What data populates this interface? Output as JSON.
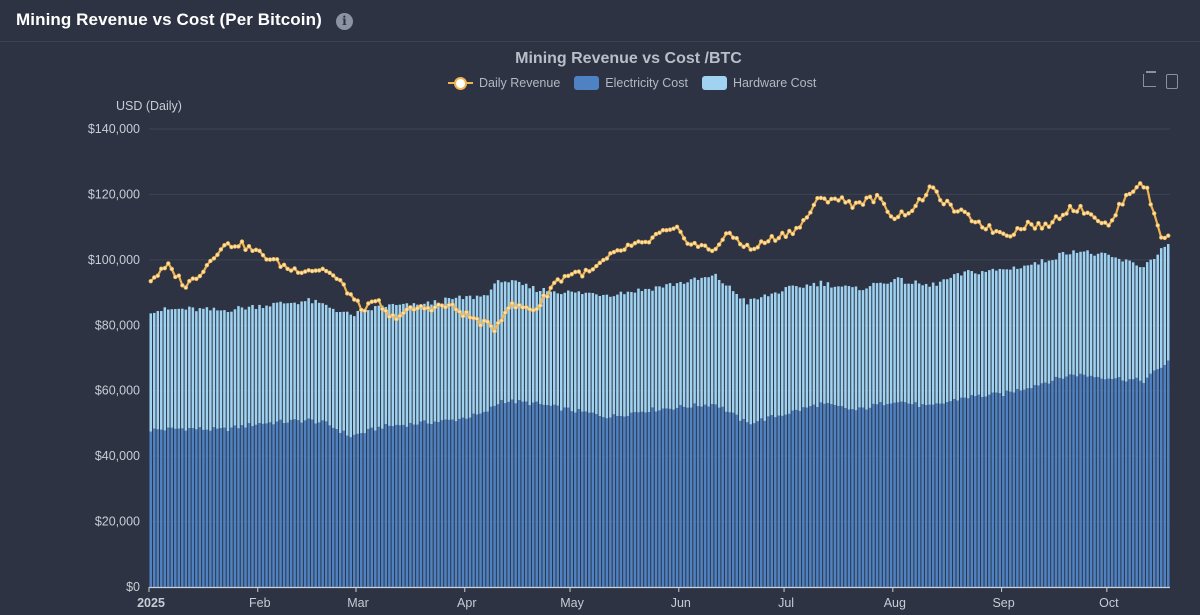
{
  "header": {
    "title": "Mining Revenue vs Cost (Per Bitcoin)",
    "info_icon": "i"
  },
  "chart_data": {
    "type": "bar+line",
    "title": "Mining Revenue vs Cost /BTC",
    "ylabel": "USD (Daily)",
    "ylim": [
      0,
      140000
    ],
    "yticks": [
      "$0",
      "$20,000",
      "$40,000",
      "$60,000",
      "$80,000",
      "$100,000",
      "$120,000",
      "$140,000"
    ],
    "xticks": [
      "2025",
      "Feb",
      "Mar",
      "Apr",
      "May",
      "Jun",
      "Jul",
      "Aug",
      "Sep",
      "Oct"
    ],
    "legend": [
      {
        "name": "Daily Revenue",
        "color": "#f0b552"
      },
      {
        "name": "Electricity Cost",
        "color": "#4e82c3"
      },
      {
        "name": "Hardware Cost",
        "color": "#9fd3f1"
      }
    ],
    "x_start": "2025-01-01",
    "days": 291,
    "electricity_anchors": [
      [
        0,
        48000
      ],
      [
        10,
        48500
      ],
      [
        20,
        48000
      ],
      [
        31,
        50000
      ],
      [
        45,
        51000
      ],
      [
        50,
        50000
      ],
      [
        57,
        46000
      ],
      [
        66,
        49000
      ],
      [
        76,
        50000
      ],
      [
        86,
        51000
      ],
      [
        95,
        53000
      ],
      [
        100,
        57000
      ],
      [
        110,
        56000
      ],
      [
        120,
        54000
      ],
      [
        131,
        52000
      ],
      [
        141,
        54000
      ],
      [
        151,
        55000
      ],
      [
        161,
        56000
      ],
      [
        170,
        50000
      ],
      [
        181,
        53000
      ],
      [
        191,
        56000
      ],
      [
        201,
        54000
      ],
      [
        212,
        57000
      ],
      [
        222,
        55000
      ],
      [
        232,
        58000
      ],
      [
        243,
        59000
      ],
      [
        253,
        62000
      ],
      [
        263,
        65000
      ],
      [
        273,
        64000
      ],
      [
        283,
        63000
      ],
      [
        290,
        69000
      ]
    ],
    "total_anchors": [
      [
        0,
        84500
      ],
      [
        10,
        85000
      ],
      [
        20,
        84500
      ],
      [
        31,
        86000
      ],
      [
        45,
        87500
      ],
      [
        50,
        86000
      ],
      [
        57,
        83000
      ],
      [
        66,
        86000
      ],
      [
        76,
        86000
      ],
      [
        86,
        88000
      ],
      [
        95,
        89000
      ],
      [
        100,
        94000
      ],
      [
        110,
        91000
      ],
      [
        120,
        90000
      ],
      [
        131,
        89500
      ],
      [
        141,
        91000
      ],
      [
        151,
        93000
      ],
      [
        161,
        95000
      ],
      [
        170,
        87000
      ],
      [
        181,
        91000
      ],
      [
        191,
        93000
      ],
      [
        201,
        91000
      ],
      [
        212,
        94000
      ],
      [
        222,
        92000
      ],
      [
        232,
        96000
      ],
      [
        243,
        97000
      ],
      [
        253,
        99000
      ],
      [
        263,
        103000
      ],
      [
        273,
        101000
      ],
      [
        283,
        98000
      ],
      [
        290,
        105000
      ]
    ],
    "revenue_anchors": [
      [
        0,
        94000
      ],
      [
        5,
        98000
      ],
      [
        10,
        92000
      ],
      [
        15,
        97000
      ],
      [
        20,
        104000
      ],
      [
        25,
        105000
      ],
      [
        31,
        102000
      ],
      [
        40,
        97000
      ],
      [
        50,
        97000
      ],
      [
        55,
        92000
      ],
      [
        60,
        85000
      ],
      [
        65,
        87000
      ],
      [
        68,
        82000
      ],
      [
        75,
        85000
      ],
      [
        85,
        86000
      ],
      [
        92,
        82000
      ],
      [
        98,
        79000
      ],
      [
        102,
        86000
      ],
      [
        110,
        85000
      ],
      [
        115,
        93000
      ],
      [
        120,
        96000
      ],
      [
        125,
        96000
      ],
      [
        131,
        101000
      ],
      [
        136,
        104000
      ],
      [
        141,
        105000
      ],
      [
        145,
        108000
      ],
      [
        150,
        109000
      ],
      [
        154,
        105000
      ],
      [
        160,
        103000
      ],
      [
        165,
        108000
      ],
      [
        171,
        103000
      ],
      [
        176,
        106000
      ],
      [
        181,
        108000
      ],
      [
        185,
        110000
      ],
      [
        190,
        118000
      ],
      [
        195,
        119000
      ],
      [
        200,
        117000
      ],
      [
        207,
        119000
      ],
      [
        212,
        113000
      ],
      [
        218,
        116000
      ],
      [
        222,
        122000
      ],
      [
        228,
        116000
      ],
      [
        235,
        112000
      ],
      [
        240,
        109000
      ],
      [
        245,
        108000
      ],
      [
        250,
        111000
      ],
      [
        255,
        110000
      ],
      [
        262,
        116000
      ],
      [
        267,
        115000
      ],
      [
        273,
        110000
      ],
      [
        277,
        118000
      ],
      [
        282,
        124000
      ],
      [
        284,
        121000
      ],
      [
        288,
        107000
      ],
      [
        290,
        108000
      ]
    ]
  }
}
